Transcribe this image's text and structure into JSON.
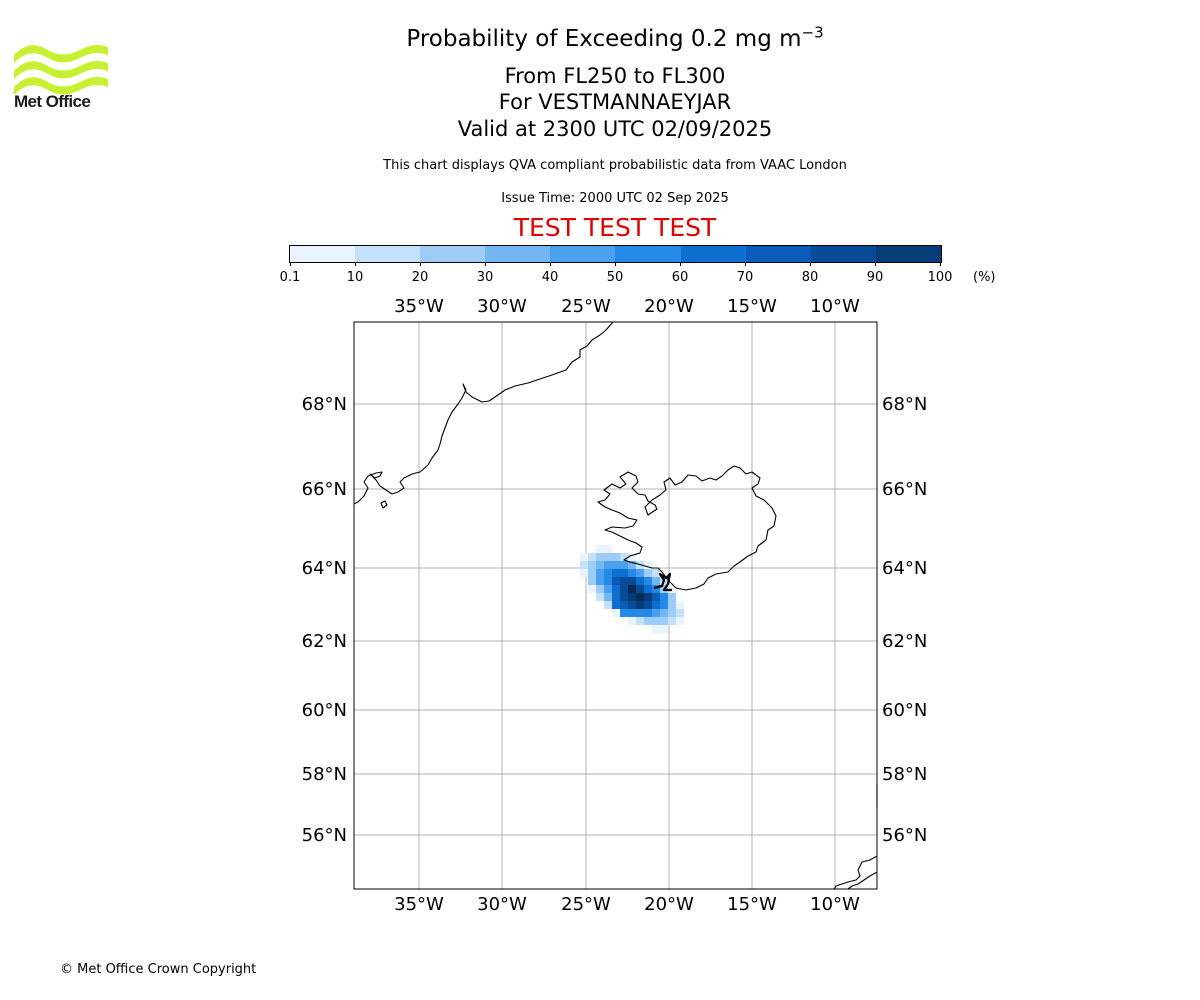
{
  "logo": {
    "text": "Met Office",
    "color": "#c8f032"
  },
  "title": {
    "line1_main": "Probability of Exceeding 0.2 mg m",
    "line1_sup": "−3",
    "line2": "From FL250 to FL300",
    "line3": "For VESTMANNAEYJAR",
    "line4": "Valid at 2300 UTC 02/09/2025"
  },
  "description": "This chart displays QVA compliant probabilistic data from VAAC London",
  "issue_time": "Issue Time: 2000 UTC 02 Sep 2025",
  "test_banner": "TEST TEST TEST",
  "test_color": "#dd0000",
  "colorbar": {
    "unit": "(%)",
    "labels": [
      "0.1",
      "10",
      "20",
      "30",
      "40",
      "50",
      "60",
      "70",
      "80",
      "90",
      "100"
    ],
    "colors": [
      "#eaf4fe",
      "#c4e1fa",
      "#9dcdf7",
      "#73b6f2",
      "#4aa0ee",
      "#2589e8",
      "#0f6fd0",
      "#0a5cb8",
      "#084b96",
      "#063c77",
      "#042c55"
    ]
  },
  "map": {
    "lon_labels": [
      "35°W",
      "30°W",
      "25°W",
      "20°W",
      "15°W",
      "10°W"
    ],
    "lat_labels": [
      "68°N",
      "66°N",
      "64°N",
      "62°N",
      "60°N",
      "58°N",
      "56°N"
    ]
  },
  "copyright": "© Met Office Crown Copyright"
}
